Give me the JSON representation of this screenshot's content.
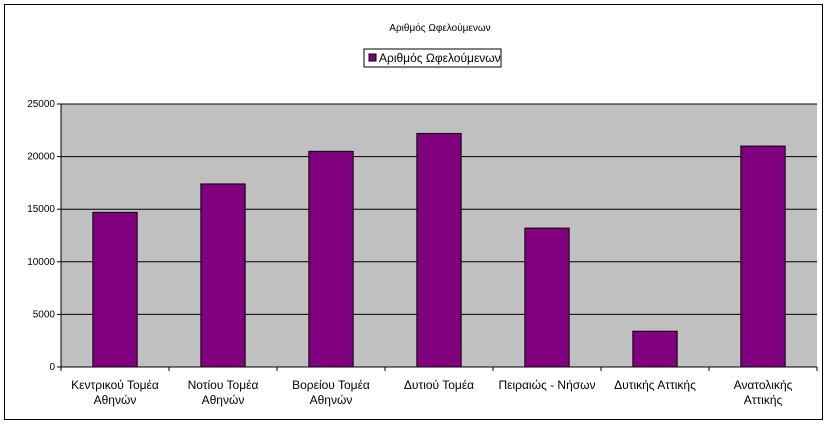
{
  "chart_data": {
    "type": "bar",
    "title": "Αριθμός Ωφελούμενων",
    "categories": [
      [
        "Κεντρικού Τομέα",
        "Αθηνών"
      ],
      [
        "Νοτίου Τομέα",
        "Αθηνών"
      ],
      [
        "Βορείου Τομέα",
        "Αθηνών"
      ],
      [
        "Δυτιού Τομέα"
      ],
      [
        "Πειραιώς - Νήσων"
      ],
      [
        "Δυτικής Αττικής"
      ],
      [
        "Ανατολικής",
        "Αττικής"
      ]
    ],
    "series": [
      {
        "name": "Αριθμός Ωφελούμενων",
        "values": [
          14700,
          17400,
          20500,
          22200,
          13200,
          3400,
          21000
        ]
      }
    ],
    "ylim": [
      0,
      25000
    ],
    "yticks": [
      0,
      5000,
      10000,
      15000,
      20000,
      25000
    ],
    "grid": true,
    "legend": "top-center",
    "colors": {
      "bar": "#800080",
      "plot_bg": "#c0c0c0",
      "grid": "#000000"
    }
  }
}
